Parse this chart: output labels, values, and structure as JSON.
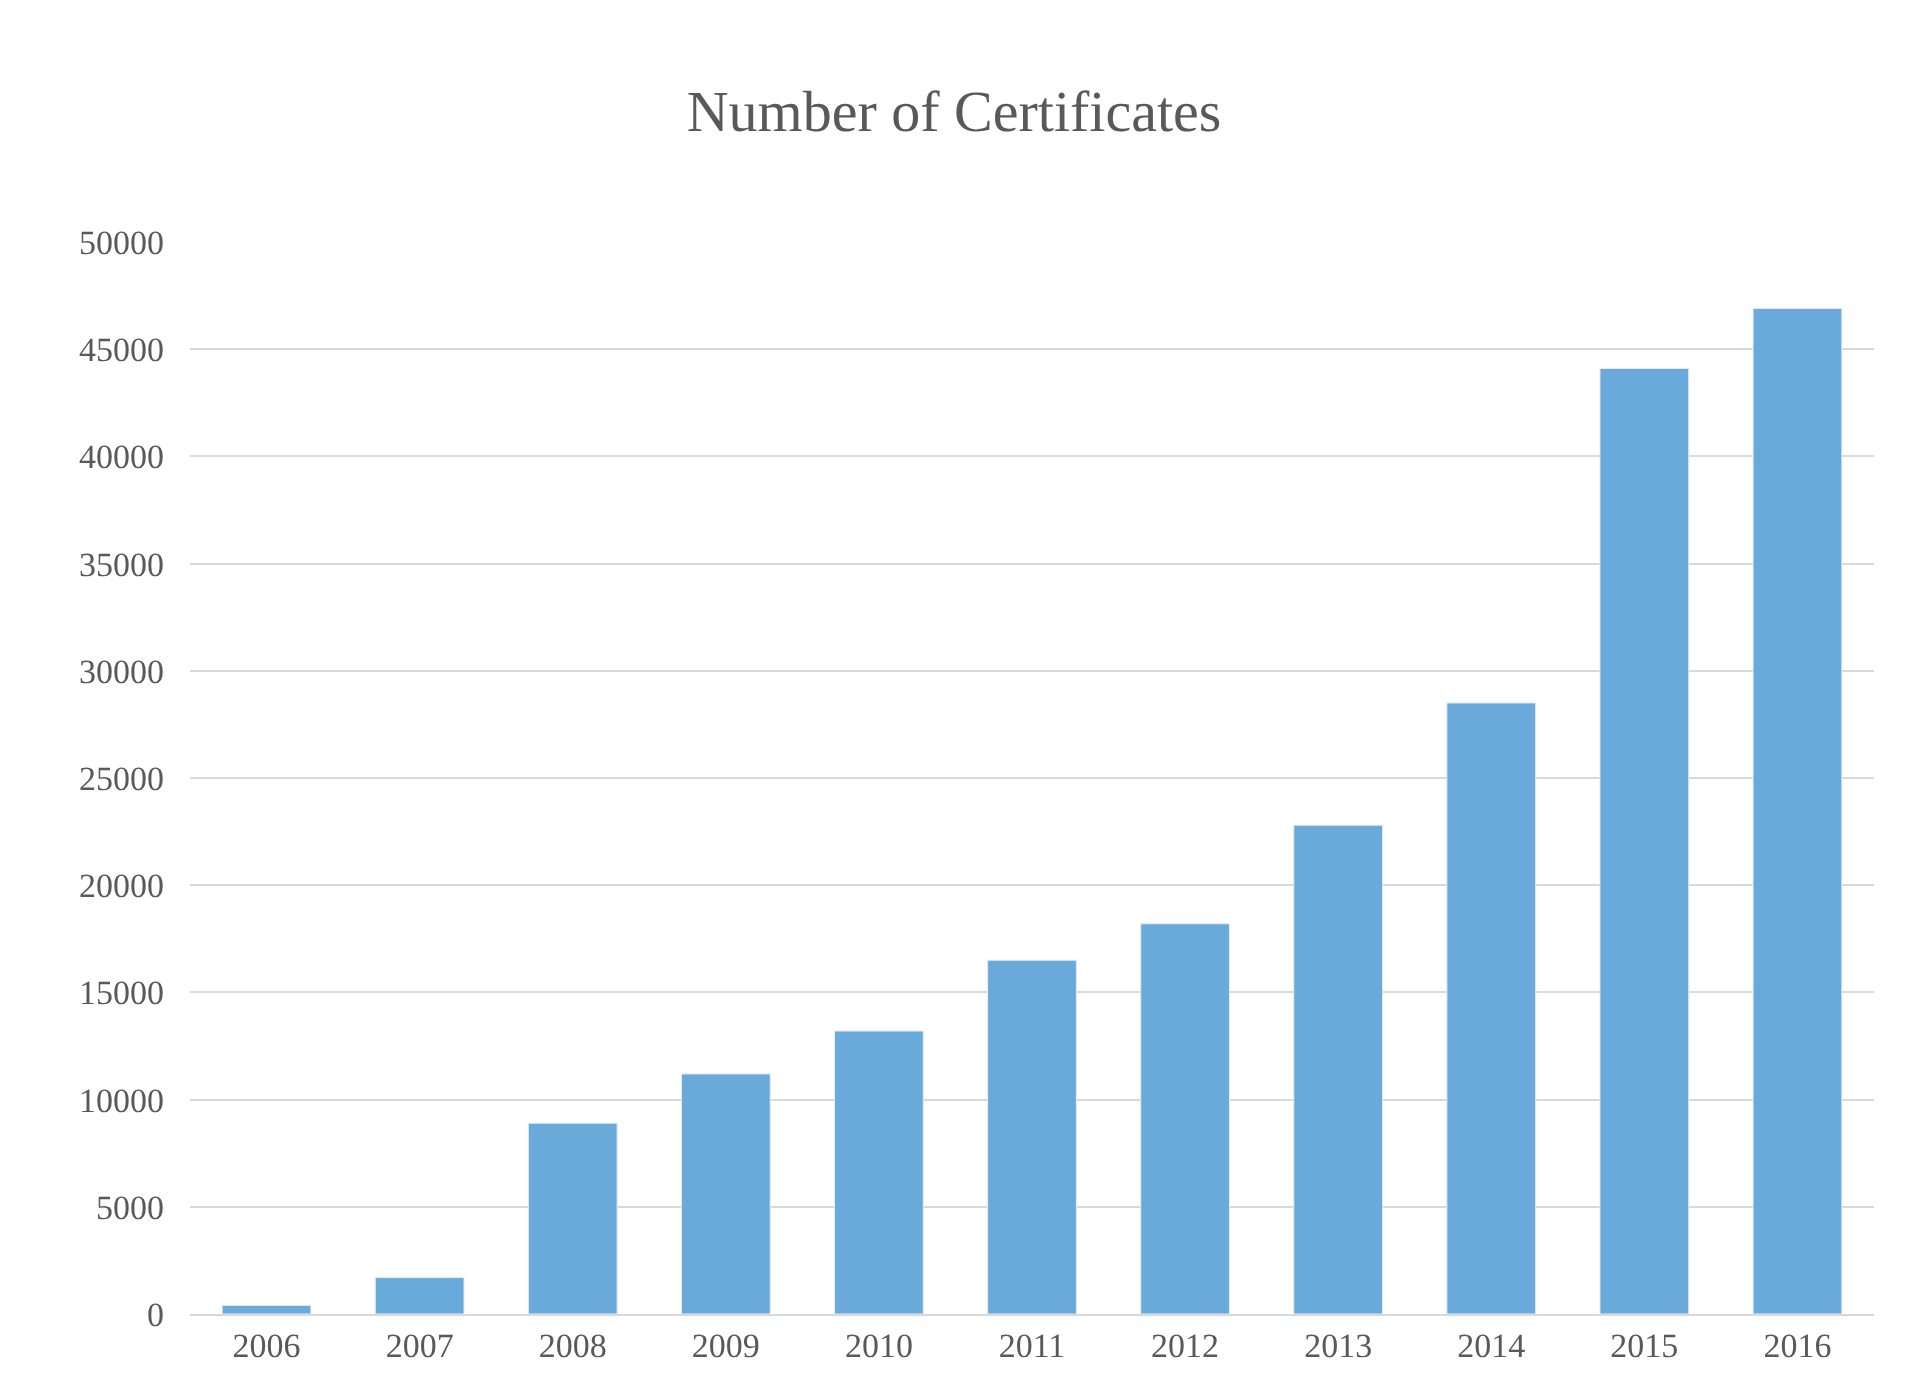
{
  "chart_data": {
    "type": "bar",
    "title": "Number of Certificates",
    "categories": [
      "2006",
      "2007",
      "2008",
      "2009",
      "2010",
      "2011",
      "2012",
      "2013",
      "2014",
      "2015",
      "2016"
    ],
    "values": [
      400,
      1700,
      8900,
      11200,
      13200,
      16500,
      18200,
      22800,
      28500,
      44100,
      46900
    ],
    "color": "#6aaadb",
    "ylim": [
      0,
      50000
    ],
    "yticks": [
      0,
      5000,
      10000,
      15000,
      20000,
      25000,
      30000,
      35000,
      40000,
      45000,
      50000
    ],
    "grid": "y"
  }
}
